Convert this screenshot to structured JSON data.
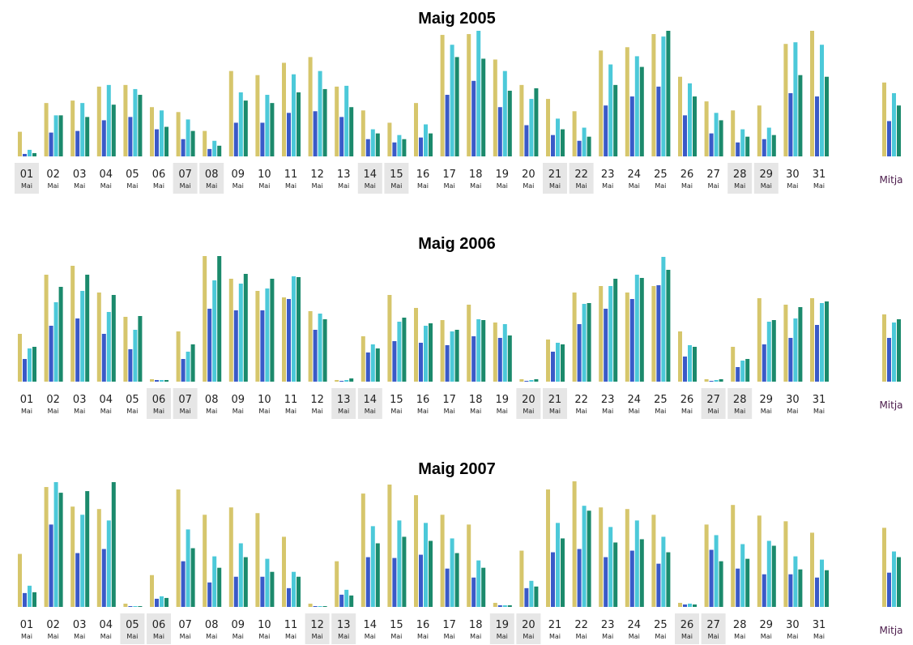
{
  "chart_data": [
    {
      "type": "bar",
      "title": "Maig 2005",
      "categories": [
        "01",
        "02",
        "03",
        "04",
        "05",
        "06",
        "07",
        "08",
        "09",
        "10",
        "11",
        "12",
        "13",
        "14",
        "15",
        "16",
        "17",
        "18",
        "19",
        "20",
        "21",
        "22",
        "23",
        "24",
        "25",
        "26",
        "27",
        "28",
        "29",
        "30",
        "31"
      ],
      "sublabel": "Mai",
      "average_label": "Mitja",
      "weekend_days": [
        "01",
        "07",
        "08",
        "14",
        "15",
        "21",
        "22",
        "28",
        "29"
      ],
      "series": [
        {
          "color": "#d6c66c",
          "values": [
            30,
            65,
            68,
            85,
            87,
            60,
            54,
            31,
            104,
            99,
            114,
            121,
            85,
            56,
            41,
            65,
            148,
            149,
            118,
            87,
            70,
            55,
            129,
            133,
            149,
            97,
            67,
            56,
            62,
            137,
            153
          ],
          "average": 90
        },
        {
          "color": "#3a5ac8",
          "values": [
            3,
            29,
            31,
            44,
            48,
            33,
            21,
            9,
            41,
            41,
            53,
            55,
            48,
            21,
            17,
            23,
            75,
            92,
            60,
            38,
            26,
            19,
            62,
            73,
            85,
            50,
            28,
            17,
            21,
            77,
            73
          ],
          "average": 43
        },
        {
          "color": "#4cc9d9",
          "values": [
            8,
            50,
            65,
            87,
            82,
            56,
            45,
            19,
            78,
            75,
            100,
            104,
            86,
            33,
            26,
            39,
            136,
            153,
            104,
            70,
            46,
            35,
            112,
            122,
            146,
            89,
            53,
            33,
            35,
            139,
            136
          ],
          "average": 77
        },
        {
          "color": "#1b8a6c",
          "values": [
            4,
            50,
            48,
            63,
            75,
            36,
            31,
            13,
            68,
            65,
            78,
            82,
            60,
            28,
            21,
            28,
            121,
            119,
            80,
            83,
            33,
            24,
            87,
            109,
            153,
            73,
            44,
            24,
            26,
            99,
            97
          ],
          "average": 62
        }
      ]
    },
    {
      "type": "bar",
      "title": "Maig 2006",
      "categories": [
        "01",
        "02",
        "03",
        "04",
        "05",
        "06",
        "07",
        "08",
        "09",
        "10",
        "11",
        "12",
        "13",
        "14",
        "15",
        "16",
        "17",
        "18",
        "19",
        "20",
        "21",
        "22",
        "23",
        "24",
        "25",
        "26",
        "27",
        "28",
        "29",
        "30",
        "31"
      ],
      "sublabel": "Mai",
      "average_label": "Mitja",
      "weekend_days": [
        "06",
        "07",
        "13",
        "14",
        "20",
        "21",
        "27",
        "28"
      ],
      "series": [
        {
          "color": "#d6c66c",
          "values": [
            59,
            132,
            143,
            110,
            80,
            3,
            62,
            155,
            127,
            112,
            104,
            87,
            2,
            56,
            107,
            91,
            76,
            95,
            73,
            3,
            52,
            110,
            118,
            110,
            118,
            62,
            3,
            43,
            103,
            95,
            103
          ],
          "average": 83
        },
        {
          "color": "#3a5ac8",
          "values": [
            28,
            69,
            78,
            59,
            40,
            2,
            28,
            90,
            88,
            88,
            102,
            64,
            1,
            36,
            50,
            48,
            45,
            56,
            54,
            1,
            37,
            71,
            90,
            102,
            119,
            31,
            1,
            18,
            46,
            54,
            70
          ],
          "average": 54
        },
        {
          "color": "#4cc9d9",
          "values": [
            41,
            98,
            112,
            86,
            64,
            2,
            37,
            125,
            121,
            115,
            130,
            84,
            2,
            46,
            74,
            69,
            62,
            77,
            71,
            2,
            48,
            96,
            118,
            132,
            154,
            45,
            2,
            26,
            74,
            78,
            97
          ],
          "average": 73
        },
        {
          "color": "#1b8a6c",
          "values": [
            43,
            117,
            132,
            107,
            81,
            2,
            46,
            155,
            133,
            127,
            129,
            77,
            4,
            41,
            79,
            72,
            64,
            76,
            57,
            3,
            46,
            97,
            127,
            128,
            138,
            43,
            3,
            28,
            76,
            92,
            99
          ],
          "average": 77
        }
      ]
    },
    {
      "type": "bar",
      "title": "Maig 2007",
      "categories": [
        "01",
        "02",
        "03",
        "04",
        "05",
        "06",
        "07",
        "08",
        "09",
        "10",
        "11",
        "12",
        "13",
        "14",
        "15",
        "16",
        "17",
        "18",
        "19",
        "20",
        "21",
        "22",
        "23",
        "24",
        "25",
        "26",
        "27",
        "28",
        "29",
        "30",
        "31"
      ],
      "sublabel": "Mai",
      "average_label": "Mitja",
      "weekend_days": [
        "05",
        "06",
        "12",
        "13",
        "19",
        "20",
        "26",
        "27"
      ],
      "series": [
        {
          "color": "#d6c66c",
          "values": [
            65,
            147,
            123,
            120,
            4,
            39,
            144,
            113,
            122,
            115,
            86,
            4,
            56,
            139,
            150,
            137,
            113,
            101,
            5,
            69,
            144,
            154,
            122,
            120,
            113,
            5,
            101,
            125,
            112,
            105,
            91
          ],
          "average": 97
        },
        {
          "color": "#3a5ac8",
          "values": [
            17,
            101,
            66,
            71,
            1,
            10,
            56,
            30,
            37,
            37,
            23,
            1,
            15,
            61,
            60,
            64,
            47,
            36,
            2,
            23,
            67,
            71,
            61,
            69,
            53,
            3,
            70,
            47,
            40,
            40,
            36
          ],
          "average": 42
        },
        {
          "color": "#4cc9d9",
          "values": [
            26,
            153,
            113,
            106,
            1,
            13,
            95,
            62,
            78,
            59,
            43,
            1,
            21,
            99,
            106,
            103,
            84,
            57,
            2,
            32,
            103,
            124,
            98,
            106,
            86,
            4,
            88,
            77,
            81,
            62,
            58
          ],
          "average": 68
        },
        {
          "color": "#1b8a6c",
          "values": [
            18,
            140,
            142,
            153,
            1,
            11,
            72,
            48,
            61,
            43,
            37,
            1,
            14,
            78,
            86,
            81,
            66,
            48,
            2,
            25,
            84,
            118,
            79,
            83,
            67,
            3,
            56,
            59,
            75,
            46,
            45
          ],
          "average": 61
        }
      ]
    }
  ]
}
